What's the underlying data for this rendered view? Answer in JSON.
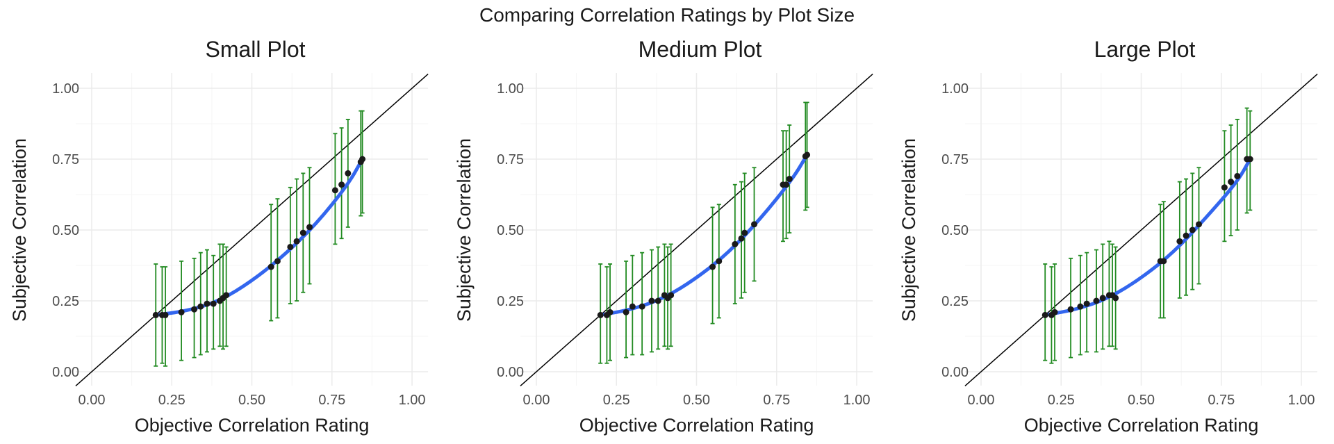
{
  "figure": {
    "title": "Comparing Correlation Ratings by Plot Size"
  },
  "colors": {
    "smooth_line": "#3366ee",
    "error_bar": "#228b22",
    "point": "#1a1a1a",
    "identity_line": "#000000",
    "grid_major": "#ebebeb",
    "grid_minor": "#f5f5f5"
  },
  "chart_data": [
    {
      "type": "scatter",
      "title": "Small Plot",
      "xlabel": "Objective Correlation Rating",
      "ylabel": "Subjective Correlation",
      "xlim": [
        0,
        1
      ],
      "ylim": [
        0,
        1
      ],
      "x_ticks": [
        "0.00",
        "0.25",
        "0.50",
        "0.75",
        "1.00"
      ],
      "y_ticks": [
        "0.00",
        "0.25",
        "0.50",
        "0.75",
        "1.00"
      ],
      "grid": true,
      "identity_line": true,
      "points": [
        {
          "x": 0.2,
          "y": 0.2,
          "lo": 0.02,
          "hi": 0.38
        },
        {
          "x": 0.22,
          "y": 0.2,
          "lo": 0.03,
          "hi": 0.37
        },
        {
          "x": 0.23,
          "y": 0.2,
          "lo": 0.02,
          "hi": 0.37
        },
        {
          "x": 0.28,
          "y": 0.21,
          "lo": 0.04,
          "hi": 0.39
        },
        {
          "x": 0.32,
          "y": 0.22,
          "lo": 0.05,
          "hi": 0.4
        },
        {
          "x": 0.34,
          "y": 0.23,
          "lo": 0.06,
          "hi": 0.42
        },
        {
          "x": 0.36,
          "y": 0.24,
          "lo": 0.07,
          "hi": 0.43
        },
        {
          "x": 0.38,
          "y": 0.24,
          "lo": 0.08,
          "hi": 0.41
        },
        {
          "x": 0.4,
          "y": 0.25,
          "lo": 0.09,
          "hi": 0.45
        },
        {
          "x": 0.41,
          "y": 0.26,
          "lo": 0.08,
          "hi": 0.45
        },
        {
          "x": 0.42,
          "y": 0.27,
          "lo": 0.09,
          "hi": 0.44
        },
        {
          "x": 0.56,
          "y": 0.37,
          "lo": 0.18,
          "hi": 0.59
        },
        {
          "x": 0.58,
          "y": 0.39,
          "lo": 0.19,
          "hi": 0.61
        },
        {
          "x": 0.62,
          "y": 0.44,
          "lo": 0.24,
          "hi": 0.65
        },
        {
          "x": 0.64,
          "y": 0.46,
          "lo": 0.25,
          "hi": 0.68
        },
        {
          "x": 0.66,
          "y": 0.49,
          "lo": 0.28,
          "hi": 0.7
        },
        {
          "x": 0.68,
          "y": 0.51,
          "lo": 0.31,
          "hi": 0.72
        },
        {
          "x": 0.76,
          "y": 0.64,
          "lo": 0.45,
          "hi": 0.84
        },
        {
          "x": 0.78,
          "y": 0.66,
          "lo": 0.47,
          "hi": 0.86
        },
        {
          "x": 0.8,
          "y": 0.7,
          "lo": 0.51,
          "hi": 0.89
        },
        {
          "x": 0.84,
          "y": 0.74,
          "lo": 0.55,
          "hi": 0.92
        },
        {
          "x": 0.845,
          "y": 0.75,
          "lo": 0.56,
          "hi": 0.92
        }
      ],
      "smooth": [
        [
          0.2,
          0.2
        ],
        [
          0.3,
          0.215
        ],
        [
          0.4,
          0.25
        ],
        [
          0.5,
          0.32
        ],
        [
          0.6,
          0.41
        ],
        [
          0.7,
          0.52
        ],
        [
          0.8,
          0.66
        ],
        [
          0.845,
          0.75
        ]
      ]
    },
    {
      "type": "scatter",
      "title": "Medium Plot",
      "xlabel": "Objective Correlation Rating",
      "ylabel": "Subjective Correlation",
      "xlim": [
        0,
        1
      ],
      "ylim": [
        0,
        1
      ],
      "x_ticks": [
        "0.00",
        "0.25",
        "0.50",
        "0.75",
        "1.00"
      ],
      "y_ticks": [
        "0.00",
        "0.25",
        "0.50",
        "0.75",
        "1.00"
      ],
      "grid": true,
      "identity_line": true,
      "points": [
        {
          "x": 0.2,
          "y": 0.2,
          "lo": 0.03,
          "hi": 0.38
        },
        {
          "x": 0.22,
          "y": 0.2,
          "lo": 0.03,
          "hi": 0.37
        },
        {
          "x": 0.23,
          "y": 0.21,
          "lo": 0.04,
          "hi": 0.38
        },
        {
          "x": 0.28,
          "y": 0.21,
          "lo": 0.05,
          "hi": 0.39
        },
        {
          "x": 0.3,
          "y": 0.23,
          "lo": 0.06,
          "hi": 0.41
        },
        {
          "x": 0.33,
          "y": 0.23,
          "lo": 0.06,
          "hi": 0.42
        },
        {
          "x": 0.36,
          "y": 0.25,
          "lo": 0.07,
          "hi": 0.43
        },
        {
          "x": 0.38,
          "y": 0.25,
          "lo": 0.08,
          "hi": 0.44
        },
        {
          "x": 0.4,
          "y": 0.27,
          "lo": 0.09,
          "hi": 0.45
        },
        {
          "x": 0.41,
          "y": 0.26,
          "lo": 0.08,
          "hi": 0.44
        },
        {
          "x": 0.42,
          "y": 0.27,
          "lo": 0.09,
          "hi": 0.45
        },
        {
          "x": 0.55,
          "y": 0.37,
          "lo": 0.17,
          "hi": 0.58
        },
        {
          "x": 0.57,
          "y": 0.39,
          "lo": 0.19,
          "hi": 0.59
        },
        {
          "x": 0.62,
          "y": 0.45,
          "lo": 0.24,
          "hi": 0.66
        },
        {
          "x": 0.64,
          "y": 0.47,
          "lo": 0.26,
          "hi": 0.67
        },
        {
          "x": 0.65,
          "y": 0.49,
          "lo": 0.28,
          "hi": 0.7
        },
        {
          "x": 0.68,
          "y": 0.52,
          "lo": 0.32,
          "hi": 0.72
        },
        {
          "x": 0.77,
          "y": 0.66,
          "lo": 0.46,
          "hi": 0.85
        },
        {
          "x": 0.78,
          "y": 0.66,
          "lo": 0.47,
          "hi": 0.85
        },
        {
          "x": 0.79,
          "y": 0.68,
          "lo": 0.49,
          "hi": 0.87
        },
        {
          "x": 0.84,
          "y": 0.76,
          "lo": 0.57,
          "hi": 0.95
        },
        {
          "x": 0.845,
          "y": 0.765,
          "lo": 0.58,
          "hi": 0.95
        }
      ],
      "smooth": [
        [
          0.2,
          0.2
        ],
        [
          0.3,
          0.22
        ],
        [
          0.4,
          0.26
        ],
        [
          0.5,
          0.33
        ],
        [
          0.6,
          0.42
        ],
        [
          0.7,
          0.54
        ],
        [
          0.8,
          0.68
        ],
        [
          0.845,
          0.765
        ]
      ]
    },
    {
      "type": "scatter",
      "title": "Large Plot",
      "xlabel": "Objective Correlation Rating",
      "ylabel": "Subjective Correlation",
      "xlim": [
        0,
        1
      ],
      "ylim": [
        0,
        1
      ],
      "x_ticks": [
        "0.00",
        "0.25",
        "0.50",
        "0.75",
        "1.00"
      ],
      "y_ticks": [
        "0.00",
        "0.25",
        "0.50",
        "0.75",
        "1.00"
      ],
      "grid": true,
      "identity_line": true,
      "points": [
        {
          "x": 0.2,
          "y": 0.2,
          "lo": 0.04,
          "hi": 0.38
        },
        {
          "x": 0.22,
          "y": 0.2,
          "lo": 0.03,
          "hi": 0.37
        },
        {
          "x": 0.23,
          "y": 0.21,
          "lo": 0.04,
          "hi": 0.38
        },
        {
          "x": 0.28,
          "y": 0.22,
          "lo": 0.05,
          "hi": 0.4
        },
        {
          "x": 0.31,
          "y": 0.23,
          "lo": 0.06,
          "hi": 0.41
        },
        {
          "x": 0.33,
          "y": 0.24,
          "lo": 0.07,
          "hi": 0.42
        },
        {
          "x": 0.36,
          "y": 0.25,
          "lo": 0.07,
          "hi": 0.43
        },
        {
          "x": 0.38,
          "y": 0.26,
          "lo": 0.08,
          "hi": 0.45
        },
        {
          "x": 0.4,
          "y": 0.27,
          "lo": 0.09,
          "hi": 0.46
        },
        {
          "x": 0.41,
          "y": 0.27,
          "lo": 0.09,
          "hi": 0.45
        },
        {
          "x": 0.42,
          "y": 0.26,
          "lo": 0.08,
          "hi": 0.44
        },
        {
          "x": 0.56,
          "y": 0.39,
          "lo": 0.19,
          "hi": 0.59
        },
        {
          "x": 0.57,
          "y": 0.39,
          "lo": 0.19,
          "hi": 0.6
        },
        {
          "x": 0.62,
          "y": 0.46,
          "lo": 0.26,
          "hi": 0.67
        },
        {
          "x": 0.64,
          "y": 0.48,
          "lo": 0.27,
          "hi": 0.68
        },
        {
          "x": 0.66,
          "y": 0.5,
          "lo": 0.29,
          "hi": 0.7
        },
        {
          "x": 0.68,
          "y": 0.52,
          "lo": 0.31,
          "hi": 0.72
        },
        {
          "x": 0.76,
          "y": 0.65,
          "lo": 0.46,
          "hi": 0.85
        },
        {
          "x": 0.78,
          "y": 0.67,
          "lo": 0.48,
          "hi": 0.87
        },
        {
          "x": 0.8,
          "y": 0.69,
          "lo": 0.5,
          "hi": 0.89
        },
        {
          "x": 0.83,
          "y": 0.75,
          "lo": 0.56,
          "hi": 0.93
        },
        {
          "x": 0.84,
          "y": 0.75,
          "lo": 0.57,
          "hi": 0.92
        }
      ],
      "smooth": [
        [
          0.2,
          0.2
        ],
        [
          0.3,
          0.22
        ],
        [
          0.4,
          0.26
        ],
        [
          0.5,
          0.33
        ],
        [
          0.6,
          0.42
        ],
        [
          0.7,
          0.54
        ],
        [
          0.8,
          0.67
        ],
        [
          0.84,
          0.75
        ]
      ]
    }
  ]
}
